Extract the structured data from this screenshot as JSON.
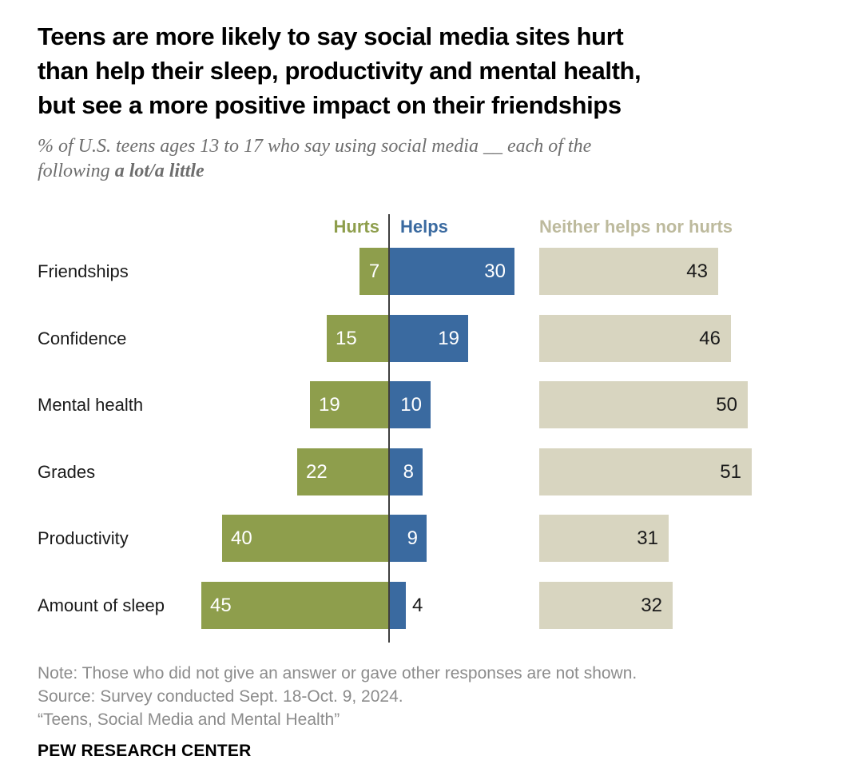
{
  "header": {
    "title_lines": [
      "Teens are more likely to say social media sites hurt",
      "than help their sleep, productivity and mental health,",
      "but see a more positive impact on their friendships"
    ],
    "subtitle_line1": "% of U.S. teens ages 13 to 17 who say using social media __ each of the",
    "subtitle_line2_regular": "following ",
    "subtitle_line2_bold": "a lot/a little"
  },
  "legend": {
    "hurts": "Hurts",
    "helps": "Helps",
    "neither": "Neither helps nor hurts"
  },
  "chart_data": {
    "type": "bar",
    "orientation": "horizontal-diverging",
    "title": "Teens are more likely to say social media sites hurt than help their sleep, productivity and mental health, but see a more positive impact on their friendships",
    "subtitle": "% of U.S. teens ages 13 to 17 who say using social media __ each of the following a lot/a little",
    "categories": [
      "Friendships",
      "Confidence",
      "Mental health",
      "Grades",
      "Productivity",
      "Amount of sleep"
    ],
    "series": [
      {
        "name": "Hurts",
        "color": "#8E9E4C",
        "values": [
          7,
          15,
          19,
          22,
          40,
          45
        ]
      },
      {
        "name": "Helps",
        "color": "#3A6AA0",
        "values": [
          30,
          19,
          10,
          8,
          9,
          4
        ]
      },
      {
        "name": "Neither helps nor hurts",
        "color": "#D8D5C0",
        "values": [
          43,
          46,
          50,
          51,
          31,
          32
        ]
      }
    ],
    "unit": "%",
    "xlim": [
      0,
      51
    ],
    "grid": false,
    "legend_position": "top",
    "value_labels": "on-bars"
  },
  "colors": {
    "hurts": "#8E9E4C",
    "helps": "#3A6AA0",
    "neither_bar": "#D8D5C0",
    "neither_legend_text": "#BDBA9D",
    "axis": "#3F3F3F",
    "title_text": "#000000",
    "subtitle_text": "#6E6E6E",
    "footer_text": "#8C8C8C"
  },
  "footer": {
    "note": "Note: Those who did not give an answer or gave other responses are not shown.",
    "source": "Source: Survey conducted Sept. 18-Oct. 9, 2024.",
    "report": "“Teens, Social Media and Mental Health”",
    "brand": "PEW RESEARCH CENTER"
  }
}
